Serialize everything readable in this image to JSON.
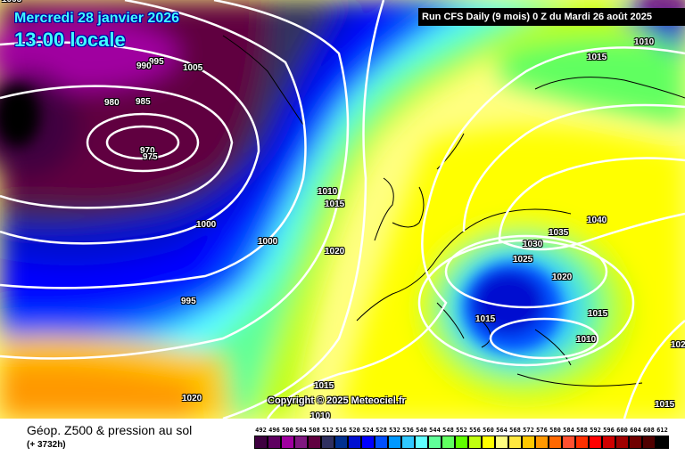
{
  "header": {
    "date": "Mercredi 28 janvier 2026",
    "time": "13:00 locale",
    "run": "Run CFS Daily (9 mois) 0 Z du Mardi 26 août 2025"
  },
  "copyright": "Copyright © 2025 Meteociel.fr",
  "footer": {
    "title": "Géop. Z500 & pression au sol",
    "subtitle": "(+ 3732h)"
  },
  "isobar_labels": [
    "1005",
    "995",
    "990",
    "1005",
    "980",
    "985",
    "970",
    "975",
    "1010",
    "1015",
    "1000",
    "1000",
    "1020",
    "995",
    "1020",
    "1015",
    "1010",
    "1010",
    "1015",
    "1040",
    "1035",
    "1030",
    "1025",
    "1020",
    "1015",
    "1015",
    "1010",
    "102",
    "1015"
  ],
  "legend": {
    "values": [
      "492",
      "496",
      "500",
      "504",
      "508",
      "512",
      "516",
      "520",
      "524",
      "528",
      "532",
      "536",
      "540",
      "544",
      "548",
      "552",
      "556",
      "560",
      "564",
      "568",
      "572",
      "576",
      "580",
      "584",
      "588",
      "592",
      "596",
      "600",
      "604",
      "608",
      "612"
    ],
    "colors": [
      "#3f0040",
      "#5e0060",
      "#a000a0",
      "#801880",
      "#600040",
      "#303060",
      "#003090",
      "#0010d0",
      "#0000ff",
      "#0050ff",
      "#0098ff",
      "#30c8ff",
      "#60ffff",
      "#60ff98",
      "#60ff60",
      "#60ff00",
      "#c0ff10",
      "#ffff00",
      "#ffff80",
      "#ffe840",
      "#ffc800",
      "#ff9800",
      "#ff6800",
      "#ff5030",
      "#ff3000",
      "#ff0000",
      "#d00000",
      "#a00000",
      "#700000",
      "#500000",
      "#000000"
    ]
  }
}
